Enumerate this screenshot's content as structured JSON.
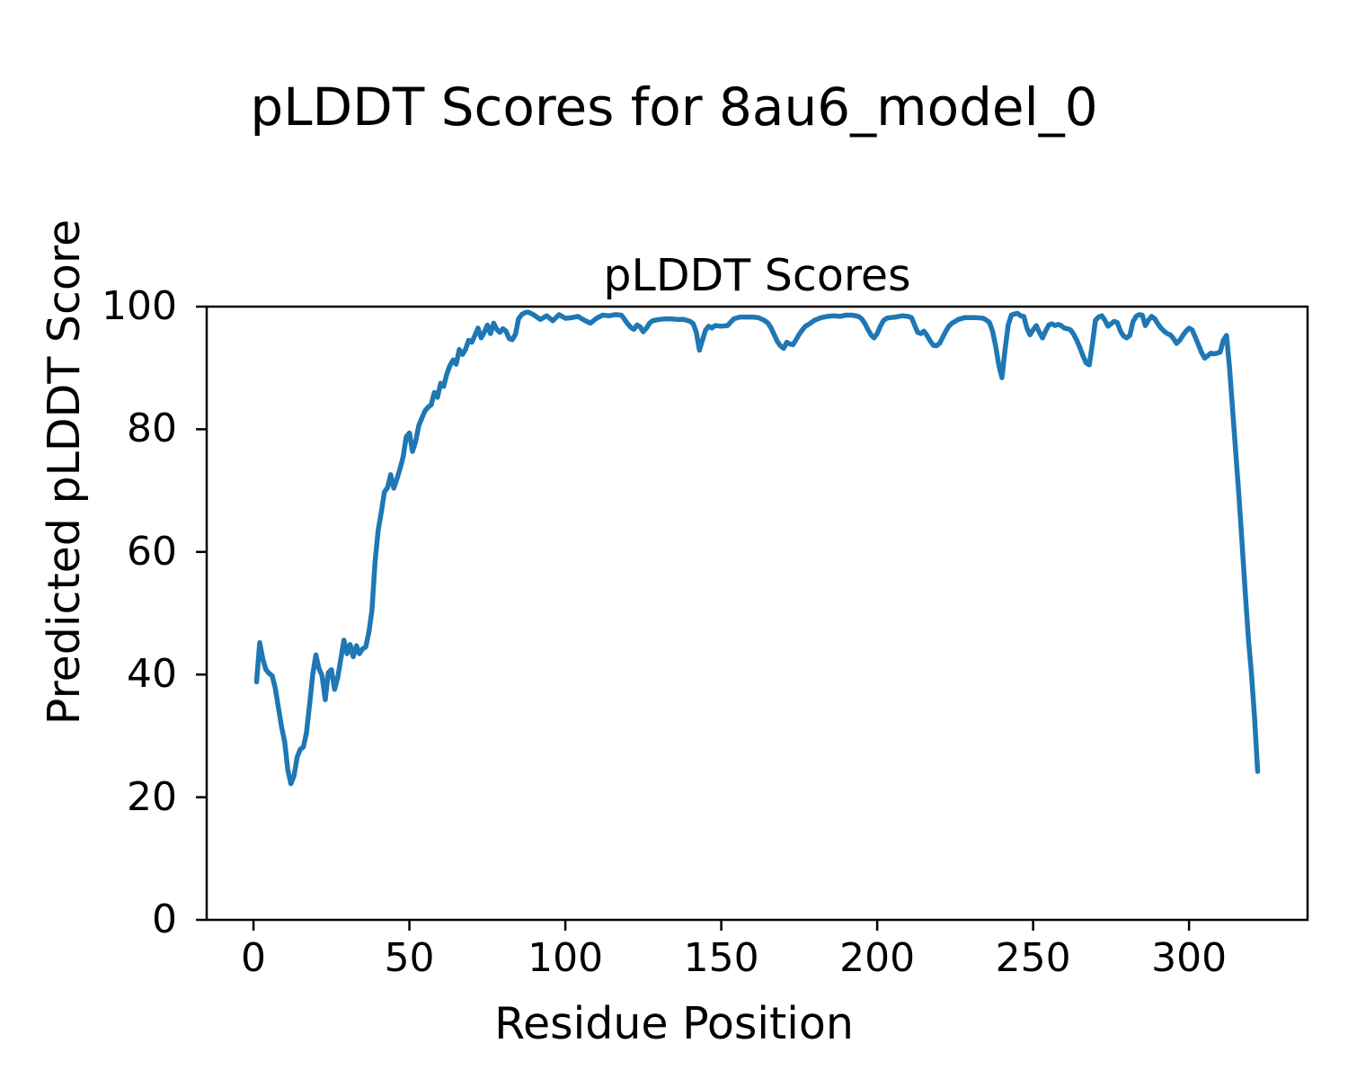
{
  "figure": {
    "suptitle": "pLDDT Scores for 8au6_model_0",
    "axes_title": "pLDDT Scores",
    "xlabel": "Residue Position",
    "ylabel": "Predicted pLDDT Score"
  },
  "chart_data": {
    "type": "line",
    "title": "pLDDT Scores",
    "suptitle": "pLDDT Scores for 8au6_model_0",
    "xlabel": "Residue Position",
    "ylabel": "Predicted pLDDT Score",
    "xlim": [
      -15,
      338
    ],
    "ylim": [
      0,
      100
    ],
    "xticks": [
      0,
      50,
      100,
      150,
      200,
      250,
      300
    ],
    "yticks": [
      0,
      20,
      40,
      60,
      80,
      100
    ],
    "grid": false,
    "legend_position": "none",
    "line_color": "#1f77b4",
    "axis_color": "#000000",
    "background_color": "#ffffff",
    "x": [
      1,
      2,
      3,
      4,
      5,
      6,
      7,
      8,
      9,
      10,
      11,
      12,
      13,
      14,
      15,
      16,
      17,
      18,
      19,
      20,
      21,
      22,
      23,
      24,
      25,
      26,
      27,
      28,
      29,
      30,
      31,
      32,
      33,
      34,
      35,
      36,
      37,
      38,
      39,
      40,
      41,
      42,
      43,
      44,
      45,
      46,
      47,
      48,
      49,
      50,
      51,
      52,
      53,
      54,
      55,
      56,
      57,
      58,
      59,
      60,
      61,
      62,
      63,
      64,
      65,
      66,
      67,
      68,
      69,
      70,
      71,
      72,
      73,
      74,
      75,
      76,
      77,
      78,
      79,
      80,
      81,
      82,
      83,
      84,
      85,
      86,
      87,
      88,
      89,
      90,
      92,
      94,
      96,
      98,
      100,
      102,
      104,
      106,
      108,
      110,
      112,
      114,
      116,
      118,
      120,
      121,
      122,
      123,
      124,
      125,
      126,
      127,
      128,
      130,
      132,
      134,
      136,
      138,
      140,
      141,
      142,
      143,
      144,
      145,
      146,
      147,
      148,
      150,
      152,
      154,
      156,
      158,
      160,
      162,
      164,
      165,
      166,
      167,
      168,
      169,
      170,
      171,
      172,
      173,
      174,
      175,
      176,
      177,
      178,
      180,
      182,
      184,
      186,
      188,
      190,
      192,
      194,
      195,
      196,
      197,
      198,
      199,
      200,
      201,
      202,
      203,
      204,
      206,
      208,
      210,
      211,
      212,
      213,
      214,
      215,
      216,
      217,
      218,
      219,
      220,
      221,
      222,
      223,
      224,
      225,
      226,
      228,
      230,
      232,
      234,
      235,
      236,
      237,
      238,
      239,
      240,
      241,
      242,
      243,
      244,
      245,
      246,
      247,
      248,
      249,
      250,
      251,
      252,
      253,
      254,
      255,
      256,
      257,
      258,
      259,
      260,
      261,
      262,
      263,
      264,
      265,
      266,
      267,
      268,
      269,
      270,
      271,
      272,
      273,
      274,
      275,
      276,
      277,
      278,
      279,
      280,
      281,
      282,
      283,
      284,
      285,
      286,
      287,
      288,
      289,
      290,
      291,
      292,
      293,
      294,
      295,
      296,
      297,
      298,
      299,
      300,
      301,
      302,
      303,
      304,
      305,
      306,
      307,
      308,
      309,
      310,
      311,
      312,
      313,
      314,
      315,
      316,
      317,
      318,
      319,
      320,
      321,
      322
    ],
    "y": [
      38.8,
      45.2,
      42.5,
      40.8,
      40.2,
      39.8,
      37.8,
      34.6,
      31.5,
      29.0,
      24.5,
      22.2,
      23.5,
      26.5,
      27.8,
      28.2,
      30.5,
      35.1,
      40.0,
      43.2,
      41.0,
      39.8,
      35.9,
      40.3,
      40.8,
      37.6,
      39.5,
      42.5,
      45.6,
      43.4,
      44.9,
      42.9,
      44.7,
      43.4,
      44.2,
      44.5,
      46.9,
      50.5,
      58.5,
      63.6,
      66.5,
      69.8,
      70.5,
      72.6,
      70.4,
      71.9,
      73.6,
      75.5,
      78.8,
      79.4,
      76.4,
      78.0,
      80.6,
      81.8,
      83.0,
      83.6,
      84.0,
      86.0,
      85.2,
      87.5,
      87.0,
      89.0,
      90.4,
      91.3,
      90.6,
      93.0,
      92.2,
      93.0,
      94.5,
      94.2,
      95.3,
      96.5,
      94.9,
      95.8,
      97.0,
      95.6,
      97.3,
      96.3,
      95.8,
      96.4,
      96.0,
      94.8,
      94.6,
      95.5,
      98.0,
      98.7,
      99.0,
      99.1,
      98.9,
      98.6,
      97.9,
      98.5,
      97.7,
      98.7,
      98.1,
      98.2,
      98.4,
      97.8,
      97.3,
      98.1,
      98.6,
      98.5,
      98.7,
      98.6,
      97.2,
      96.6,
      96.3,
      97.0,
      96.7,
      95.9,
      96.5,
      97.3,
      97.7,
      97.9,
      98.0,
      98.0,
      97.9,
      97.9,
      97.6,
      97.2,
      95.8,
      92.9,
      94.6,
      96.2,
      96.8,
      96.5,
      96.9,
      96.8,
      96.9,
      98.0,
      98.3,
      98.3,
      98.3,
      98.2,
      97.7,
      97.3,
      96.5,
      95.4,
      94.3,
      93.6,
      93.2,
      94.2,
      93.9,
      93.8,
      94.6,
      95.5,
      96.2,
      96.8,
      97.1,
      97.8,
      98.2,
      98.4,
      98.5,
      98.4,
      98.6,
      98.6,
      98.4,
      98.0,
      97.3,
      96.3,
      95.4,
      94.9,
      95.6,
      96.8,
      97.7,
      98.1,
      98.2,
      98.3,
      98.5,
      98.4,
      98.2,
      97.0,
      95.8,
      95.6,
      96.0,
      95.3,
      94.4,
      93.7,
      93.6,
      94.0,
      95.0,
      96.0,
      96.8,
      97.3,
      97.6,
      97.9,
      98.2,
      98.2,
      98.2,
      98.1,
      97.8,
      97.4,
      96.0,
      93.5,
      90.5,
      88.4,
      93.0,
      97.0,
      98.6,
      98.8,
      98.9,
      98.5,
      98.4,
      96.5,
      95.4,
      96.2,
      96.9,
      95.8,
      94.9,
      96.0,
      97.0,
      97.2,
      96.9,
      97.1,
      96.9,
      96.5,
      96.4,
      96.2,
      95.5,
      94.5,
      93.3,
      92.0,
      90.8,
      90.5,
      94.0,
      97.8,
      98.3,
      98.5,
      97.8,
      96.8,
      97.2,
      97.6,
      97.4,
      96.0,
      95.2,
      94.9,
      95.3,
      97.5,
      98.4,
      98.7,
      98.6,
      96.9,
      97.8,
      98.4,
      98.0,
      97.2,
      96.5,
      96.0,
      95.6,
      95.4,
      94.8,
      94.0,
      94.5,
      95.3,
      96.0,
      96.5,
      96.2,
      95.0,
      93.8,
      92.5,
      91.6,
      92.0,
      92.4,
      92.3,
      92.4,
      92.6,
      94.5,
      95.3,
      90.0,
      83.0,
      76.0,
      69.0,
      61.5,
      53.5,
      46.0,
      40.3,
      33.0,
      24.2
    ]
  }
}
